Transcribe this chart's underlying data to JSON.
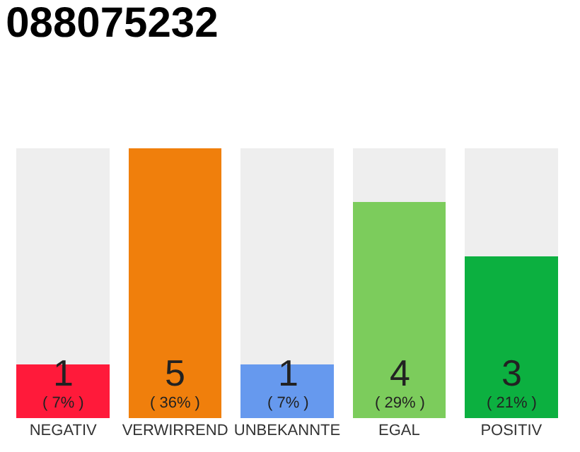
{
  "chart_data": {
    "type": "bar",
    "title": "088075232",
    "categories": [
      "NEGATIV",
      "VERWIRREND",
      "UNBEKANNTE",
      "EGAL",
      "POSITIV"
    ],
    "stacked": true,
    "series": [
      {
        "color": "#ff1a3a",
        "colors": [
          "#ff1a3a",
          "#f07f0c",
          "#6699ee",
          "#7ccc5c",
          "#0cb040"
        ],
        "values": [
          1,
          5,
          1,
          4,
          3
        ],
        "value_labels": [
          "1\n( 7% )",
          "5\n( 36% )",
          "1\n( 7% )",
          "4\n( 29% )",
          "3\n( 21% )"
        ]
      },
      {
        "color": "#eeeeee",
        "values": [
          4,
          0,
          4,
          1,
          2
        ]
      }
    ],
    "tick_labels": "x"
  }
}
